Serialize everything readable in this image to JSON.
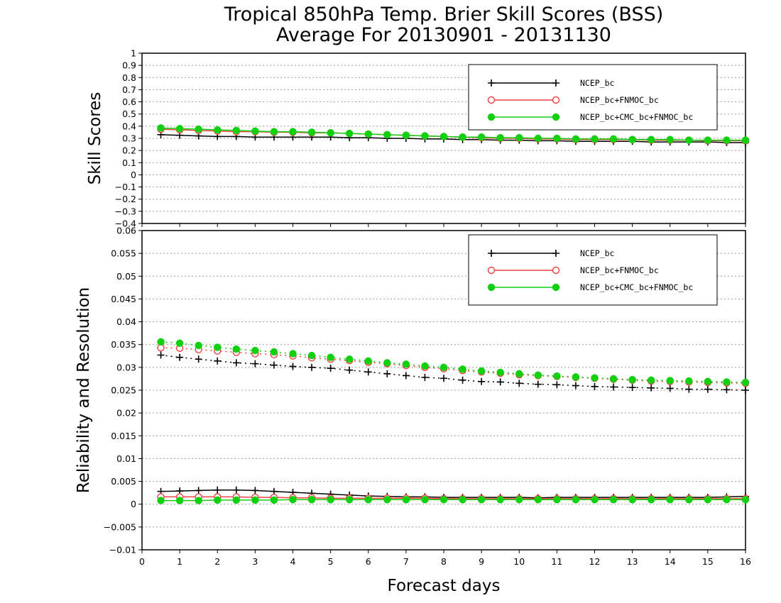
{
  "title_line1": "Tropical 850hPa Temp. Brier Skill Scores (BSS)",
  "title_line2": "Average For 20130901 - 20131130",
  "xlabel": "Forecast days",
  "colors": {
    "NCEP_bc": "#000000",
    "NCEP_bc+FNMOC_bc": "#f04040",
    "NCEP_bc+CMC_bc+FNMOC_bc": "#10d010"
  },
  "chart_data": [
    {
      "type": "line",
      "ylabel": "Skill Scores",
      "xlim": [
        0,
        16
      ],
      "ylim": [
        -0.4,
        1
      ],
      "x_ticks": [
        "0",
        "1",
        "2",
        "3",
        "4",
        "5",
        "6",
        "7",
        "8",
        "9",
        "10",
        "11",
        "12",
        "13",
        "14",
        "15",
        "16"
      ],
      "y_ticks": [
        "−0.4",
        "−0.3",
        "−0.2",
        "−0.1",
        "0",
        "0.1",
        "0.2",
        "0.3",
        "0.4",
        "0.5",
        "0.6",
        "0.7",
        "0.8",
        "0.9",
        "1"
      ],
      "y_tick_values": [
        -0.4,
        -0.3,
        -0.2,
        -0.1,
        0,
        0.1,
        0.2,
        0.3,
        0.4,
        0.5,
        0.6,
        0.7,
        0.8,
        0.9,
        1
      ],
      "grid": true,
      "legend_position": "top-right",
      "x": [
        0.5,
        1,
        1.5,
        2,
        2.5,
        3,
        3.5,
        4,
        4.5,
        5,
        5.5,
        6,
        6.5,
        7,
        7.5,
        8,
        8.5,
        9,
        9.5,
        10,
        10.5,
        11,
        11.5,
        12,
        12.5,
        13,
        13.5,
        14,
        14.5,
        15,
        15.5,
        16
      ],
      "series": [
        {
          "name": "NCEP_bc",
          "marker": "plus",
          "linestyle": "solid",
          "values": [
            0.33,
            0.325,
            0.32,
            0.315,
            0.315,
            0.31,
            0.31,
            0.31,
            0.31,
            0.31,
            0.305,
            0.305,
            0.3,
            0.3,
            0.295,
            0.295,
            0.29,
            0.29,
            0.285,
            0.285,
            0.28,
            0.28,
            0.275,
            0.275,
            0.275,
            0.275,
            0.27,
            0.27,
            0.27,
            0.27,
            0.265,
            0.265
          ]
        },
        {
          "name": "NCEP_bc+FNMOC_bc",
          "marker": "circle",
          "linestyle": "solid",
          "values": [
            0.375,
            0.37,
            0.365,
            0.36,
            0.355,
            0.355,
            0.35,
            0.35,
            0.345,
            0.345,
            0.34,
            0.335,
            0.33,
            0.325,
            0.32,
            0.315,
            0.31,
            0.305,
            0.3,
            0.3,
            0.295,
            0.295,
            0.29,
            0.29,
            0.29,
            0.29,
            0.285,
            0.285,
            0.285,
            0.28,
            0.28,
            0.28
          ]
        },
        {
          "name": "NCEP_bc+CMC_bc+FNMOC_bc",
          "marker": "dot",
          "linestyle": "solid",
          "values": [
            0.385,
            0.38,
            0.375,
            0.37,
            0.365,
            0.36,
            0.355,
            0.355,
            0.35,
            0.345,
            0.34,
            0.335,
            0.33,
            0.325,
            0.32,
            0.315,
            0.31,
            0.31,
            0.305,
            0.305,
            0.3,
            0.3,
            0.295,
            0.295,
            0.295,
            0.29,
            0.29,
            0.29,
            0.285,
            0.285,
            0.285,
            0.285
          ]
        }
      ]
    },
    {
      "type": "line",
      "ylabel": "Reliability and Resolution",
      "xlim": [
        0,
        16
      ],
      "ylim": [
        -0.01,
        0.06
      ],
      "x_ticks": [
        "0",
        "1",
        "2",
        "3",
        "4",
        "5",
        "6",
        "7",
        "8",
        "9",
        "10",
        "11",
        "12",
        "13",
        "14",
        "15",
        "16"
      ],
      "y_ticks": [
        "−0.01",
        "−0.005",
        "0",
        "0.005",
        "0.01",
        "0.015",
        "0.02",
        "0.025",
        "0.03",
        "0.035",
        "0.04",
        "0.045",
        "0.05",
        "0.055",
        "0.06"
      ],
      "y_tick_values": [
        -0.01,
        -0.005,
        0,
        0.005,
        0.01,
        0.015,
        0.02,
        0.025,
        0.03,
        0.035,
        0.04,
        0.045,
        0.05,
        0.055,
        0.06
      ],
      "grid": true,
      "legend_position": "top-right",
      "x": [
        0.5,
        1,
        1.5,
        2,
        2.5,
        3,
        3.5,
        4,
        4.5,
        5,
        5.5,
        6,
        6.5,
        7,
        7.5,
        8,
        8.5,
        9,
        9.5,
        10,
        10.5,
        11,
        11.5,
        12,
        12.5,
        13,
        13.5,
        14,
        14.5,
        15,
        15.5,
        16
      ],
      "series": [
        {
          "name": "NCEP_bc",
          "component": "resolution",
          "marker": "plus",
          "linestyle": "dotted",
          "values": [
            0.0327,
            0.0322,
            0.0318,
            0.0314,
            0.031,
            0.0308,
            0.0305,
            0.0302,
            0.03,
            0.0298,
            0.0294,
            0.029,
            0.0286,
            0.0282,
            0.0278,
            0.0276,
            0.0272,
            0.0269,
            0.0268,
            0.0265,
            0.0263,
            0.0262,
            0.026,
            0.0258,
            0.0257,
            0.0256,
            0.0255,
            0.0254,
            0.0252,
            0.0252,
            0.0251,
            0.025
          ]
        },
        {
          "name": "NCEP_bc+FNMOC_bc",
          "component": "resolution",
          "marker": "circle",
          "linestyle": "dotted",
          "values": [
            0.0343,
            0.0342,
            0.0339,
            0.0336,
            0.0333,
            0.033,
            0.0328,
            0.0325,
            0.0321,
            0.0318,
            0.0315,
            0.0311,
            0.0308,
            0.0304,
            0.03,
            0.0297,
            0.0293,
            0.029,
            0.0287,
            0.0284,
            0.0282,
            0.028,
            0.0278,
            0.0276,
            0.0274,
            0.0272,
            0.027,
            0.0269,
            0.0268,
            0.0267,
            0.0266,
            0.0265
          ]
        },
        {
          "name": "NCEP_bc+CMC_bc+FNMOC_bc",
          "component": "resolution",
          "marker": "dot",
          "linestyle": "dotted",
          "values": [
            0.0356,
            0.0353,
            0.0348,
            0.0344,
            0.034,
            0.0337,
            0.0334,
            0.033,
            0.0326,
            0.0322,
            0.0318,
            0.0314,
            0.031,
            0.0307,
            0.0303,
            0.03,
            0.0296,
            0.0292,
            0.0289,
            0.0286,
            0.0283,
            0.0281,
            0.0279,
            0.0277,
            0.0275,
            0.0273,
            0.0272,
            0.0271,
            0.027,
            0.0269,
            0.0268,
            0.0267
          ]
        },
        {
          "name": "NCEP_bc",
          "component": "reliability",
          "marker": "plus",
          "linestyle": "solid",
          "values": [
            0.0028,
            0.0029,
            0.003,
            0.0031,
            0.0031,
            0.003,
            0.0028,
            0.0026,
            0.0024,
            0.0022,
            0.002,
            0.0018,
            0.0017,
            0.0016,
            0.0016,
            0.0015,
            0.0015,
            0.0015,
            0.0015,
            0.0015,
            0.0014,
            0.0015,
            0.0015,
            0.0015,
            0.0015,
            0.0015,
            0.0015,
            0.0015,
            0.0015,
            0.0015,
            0.0016,
            0.0017
          ]
        },
        {
          "name": "NCEP_bc+FNMOC_bc",
          "component": "reliability",
          "marker": "circle",
          "linestyle": "solid",
          "values": [
            0.0016,
            0.0016,
            0.0016,
            0.0016,
            0.0016,
            0.0015,
            0.0015,
            0.0014,
            0.0014,
            0.0013,
            0.0013,
            0.0013,
            0.0013,
            0.0013,
            0.0013,
            0.0012,
            0.0012,
            0.0012,
            0.0012,
            0.0012,
            0.0012,
            0.0012,
            0.0012,
            0.0012,
            0.0012,
            0.0012,
            0.0012,
            0.0012,
            0.0012,
            0.0012,
            0.0012,
            0.0012
          ]
        },
        {
          "name": "NCEP_bc+CMC_bc+FNMOC_bc",
          "component": "reliability",
          "marker": "dot",
          "linestyle": "solid",
          "values": [
            0.0008,
            0.0008,
            0.0008,
            0.0009,
            0.0009,
            0.0009,
            0.0009,
            0.001,
            0.001,
            0.001,
            0.001,
            0.001,
            0.001,
            0.001,
            0.001,
            0.001,
            0.001,
            0.001,
            0.001,
            0.001,
            0.001,
            0.001,
            0.001,
            0.001,
            0.001,
            0.001,
            0.001,
            0.001,
            0.001,
            0.001,
            0.001,
            0.001
          ]
        }
      ]
    }
  ]
}
